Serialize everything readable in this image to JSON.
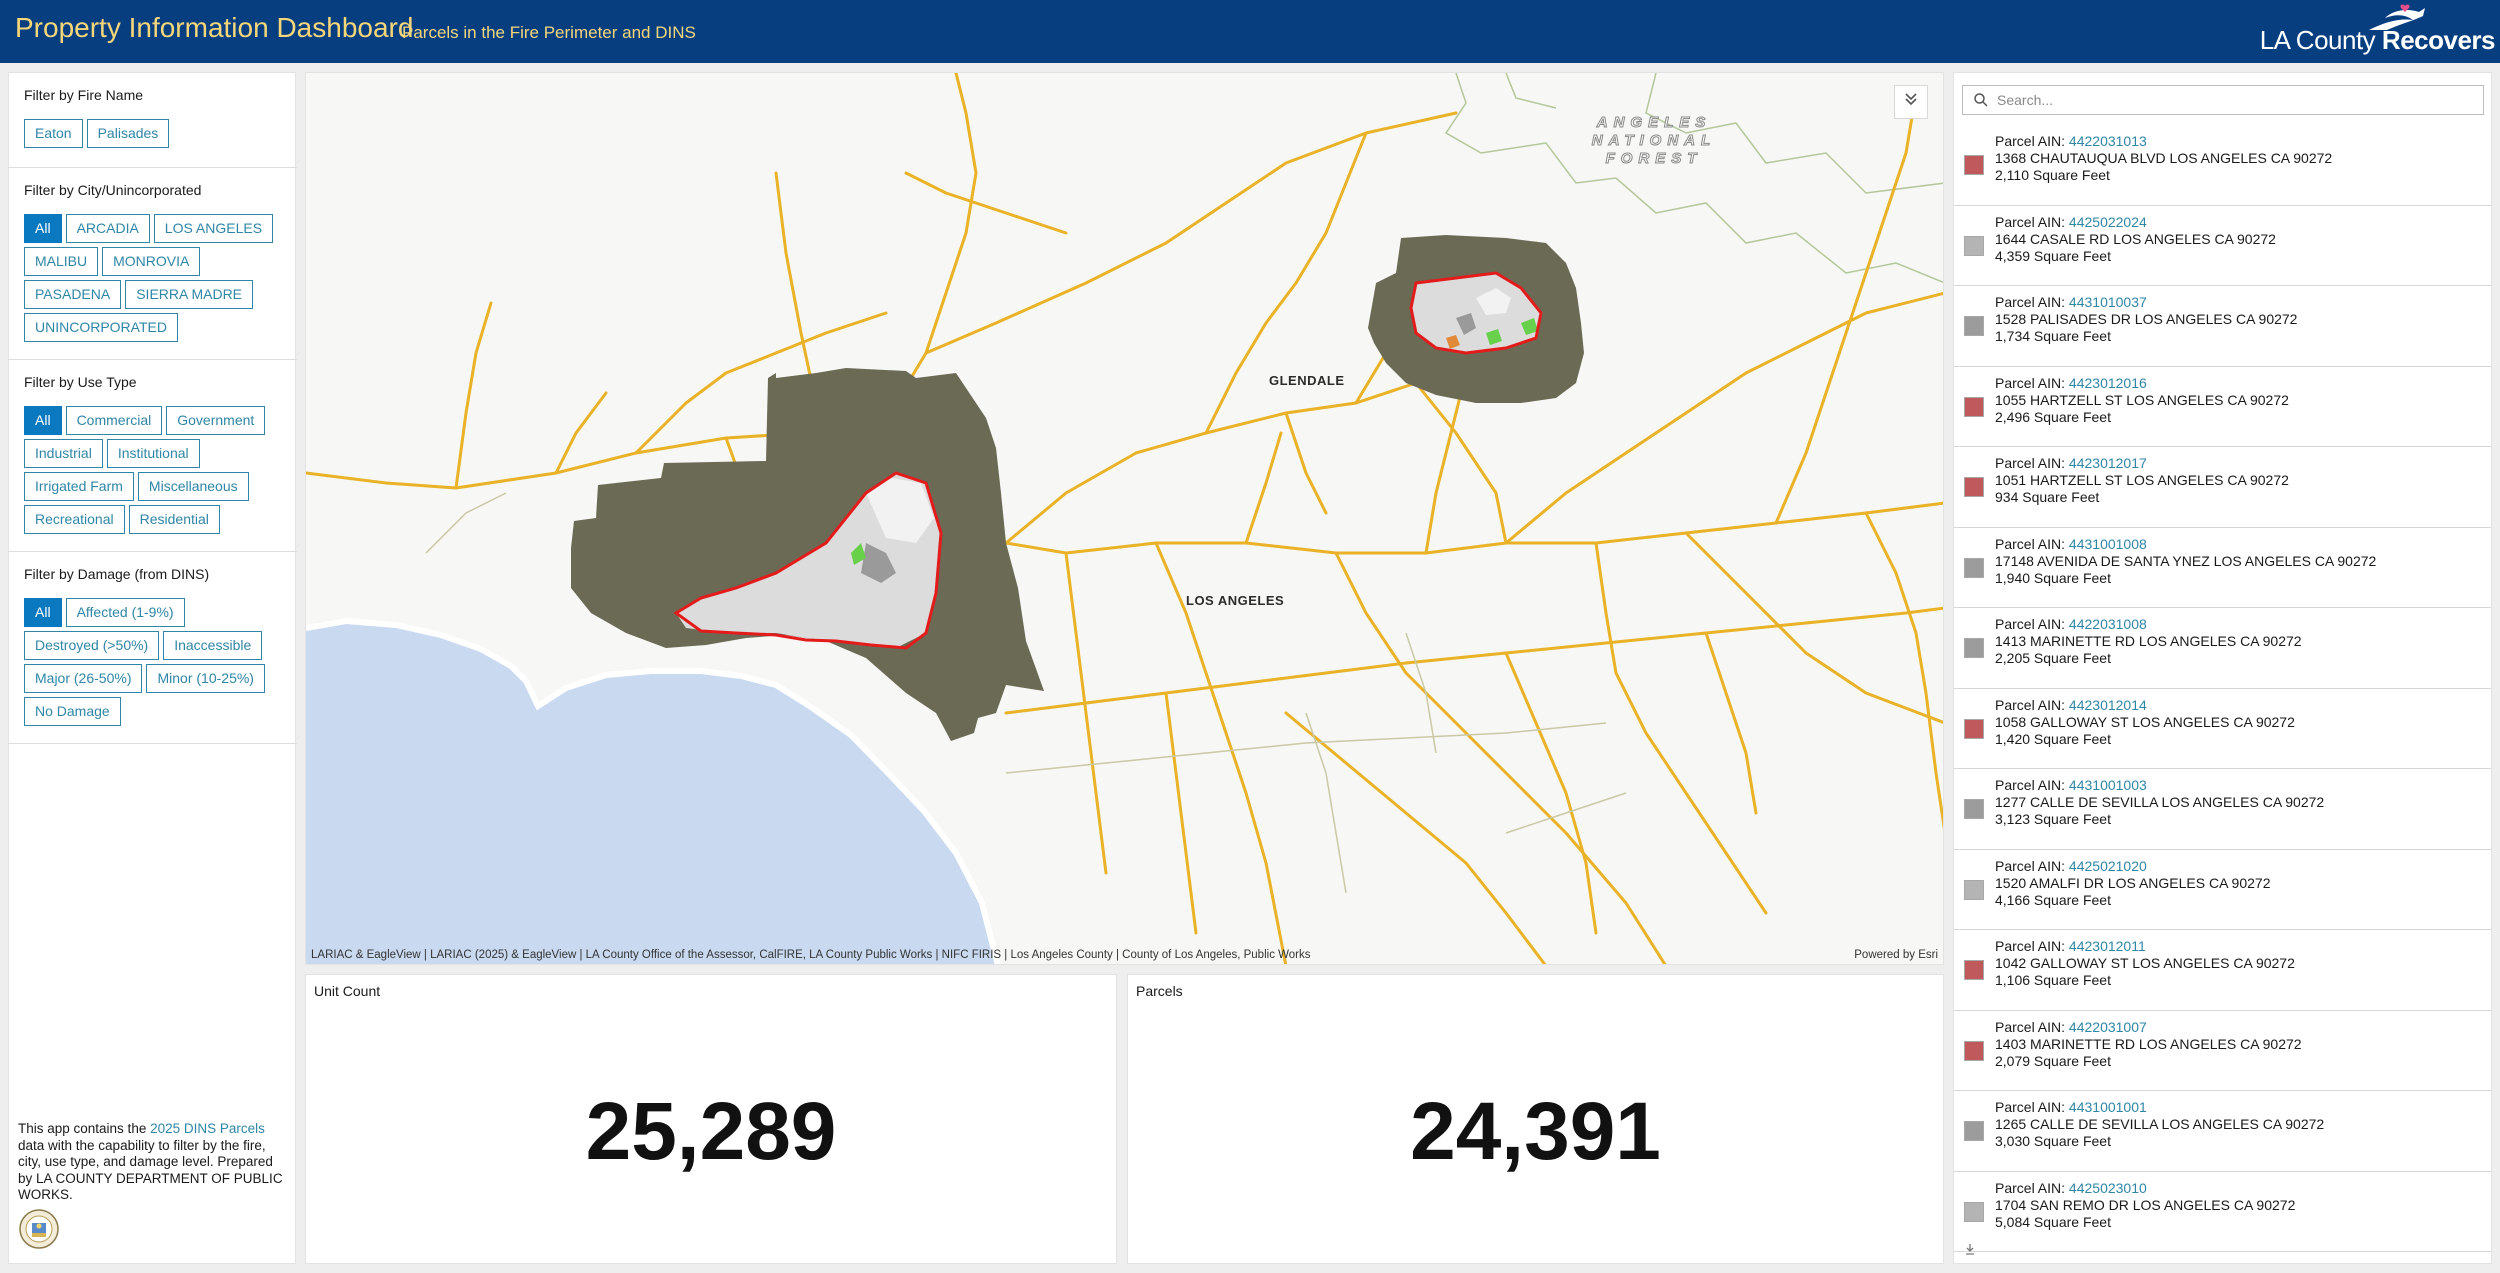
{
  "header": {
    "title": "Property Information Dashboard",
    "subtitle": "Parcels in the Fire Perimeter and DINS",
    "logo_text_light": "LA County",
    "logo_text_bold": "Recovers"
  },
  "filters": [
    {
      "title": "Filter by Fire Name",
      "options": [
        "Eaton",
        "Palisades"
      ],
      "selected": null
    },
    {
      "title": "Filter by City/Unincorporated",
      "options": [
        "All",
        "ARCADIA",
        "LOS ANGELES",
        "MALIBU",
        "MONROVIA",
        "PASADENA",
        "SIERRA MADRE",
        "UNINCORPORATED"
      ],
      "selected": "All"
    },
    {
      "title": "Filter by Use Type",
      "options": [
        "All",
        "Commercial",
        "Government",
        "Industrial",
        "Institutional",
        "Irrigated Farm",
        "Miscellaneous",
        "Recreational",
        "Residential"
      ],
      "selected": "All"
    },
    {
      "title": "Filter by Damage (from DINS)",
      "options": [
        "All",
        "Affected (1-9%)",
        "Destroyed (>50%)",
        "Inaccessible",
        "Major (26-50%)",
        "Minor (10-25%)",
        "No Damage"
      ],
      "selected": "All"
    }
  ],
  "about": {
    "text_before": "This app contains the",
    "link_text": "2025 DINS Parcels",
    "text_after": "data with the capability to filter by the fire, city, use type, and damage level. Prepared by LA COUNTY DEPARTMENT OF PUBLIC WORKS."
  },
  "map": {
    "labels": {
      "glendale": "GLENDALE",
      "los_angeles": "LOS ANGELES"
    },
    "forest_label": [
      "ANGELES",
      "NATIONAL",
      "FOREST"
    ],
    "toggle_icon": "chevron-double-down-icon",
    "attribution": "LARIAC & EagleView | LARIAC (2025) & EagleView | LA County Office of the Assessor, CalFIRE, LA County Public Works | NIFC FIRIS | Los Angeles County | County of Los Angeles, Public Works",
    "powered_by": "Powered by Esri",
    "colors": {
      "road": "#e9b227",
      "water": "#c9daf0",
      "perimeter": "#e41b1b",
      "burned_area": "#6b6a55"
    }
  },
  "indicators": {
    "unit_count": {
      "label": "Unit Count",
      "value": "25,289"
    },
    "parcels": {
      "label": "Parcels",
      "value": "24,391"
    }
  },
  "list": {
    "search_placeholder": "Search...",
    "ain_prefix": "Parcel AIN:",
    "items": [
      {
        "ain": "4422031013",
        "address": "1368 CHAUTAUQUA BLVD LOS ANGELES CA 90272",
        "area": "2,110 Square Feet",
        "color": "#c0595c"
      },
      {
        "ain": "4425022024",
        "address": "1644 CASALE RD LOS ANGELES CA 90272",
        "area": "4,359 Square Feet",
        "color": "#b4b4b4"
      },
      {
        "ain": "4431010037",
        "address": "1528 PALISADES DR LOS ANGELES CA 90272",
        "area": "1,734 Square Feet",
        "color": "#9c9c9c"
      },
      {
        "ain": "4423012016",
        "address": "1055 HARTZELL ST LOS ANGELES CA 90272",
        "area": "2,496 Square Feet",
        "color": "#c0595c"
      },
      {
        "ain": "4423012017",
        "address": "1051 HARTZELL ST LOS ANGELES CA 90272",
        "area": "934 Square Feet",
        "color": "#c0595c"
      },
      {
        "ain": "4431001008",
        "address": "17148 AVENIDA DE SANTA YNEZ LOS ANGELES CA 90272",
        "area": "1,940 Square Feet",
        "color": "#9c9c9c"
      },
      {
        "ain": "4422031008",
        "address": "1413 MARINETTE RD LOS ANGELES CA 90272",
        "area": "2,205 Square Feet",
        "color": "#9c9c9c"
      },
      {
        "ain": "4423012014",
        "address": "1058 GALLOWAY ST LOS ANGELES CA 90272",
        "area": "1,420 Square Feet",
        "color": "#c0595c"
      },
      {
        "ain": "4431001003",
        "address": "1277 CALLE DE SEVILLA LOS ANGELES CA 90272",
        "area": "3,123 Square Feet",
        "color": "#9c9c9c"
      },
      {
        "ain": "4425021020",
        "address": "1520 AMALFI DR LOS ANGELES CA 90272",
        "area": "4,166 Square Feet",
        "color": "#b4b4b4"
      },
      {
        "ain": "4423012011",
        "address": "1042 GALLOWAY ST LOS ANGELES CA 90272",
        "area": "1,106 Square Feet",
        "color": "#c0595c"
      },
      {
        "ain": "4422031007",
        "address": "1403 MARINETTE RD LOS ANGELES CA 90272",
        "area": "2,079 Square Feet",
        "color": "#c0595c"
      },
      {
        "ain": "4431001001",
        "address": "1265 CALLE DE SEVILLA LOS ANGELES CA 90272",
        "area": "3,030 Square Feet",
        "color": "#9c9c9c"
      },
      {
        "ain": "4425023010",
        "address": "1704 SAN REMO DR LOS ANGELES CA 90272",
        "area": "5,084 Square Feet",
        "color": "#b4b4b4"
      }
    ],
    "download_icon": "download-icon"
  }
}
